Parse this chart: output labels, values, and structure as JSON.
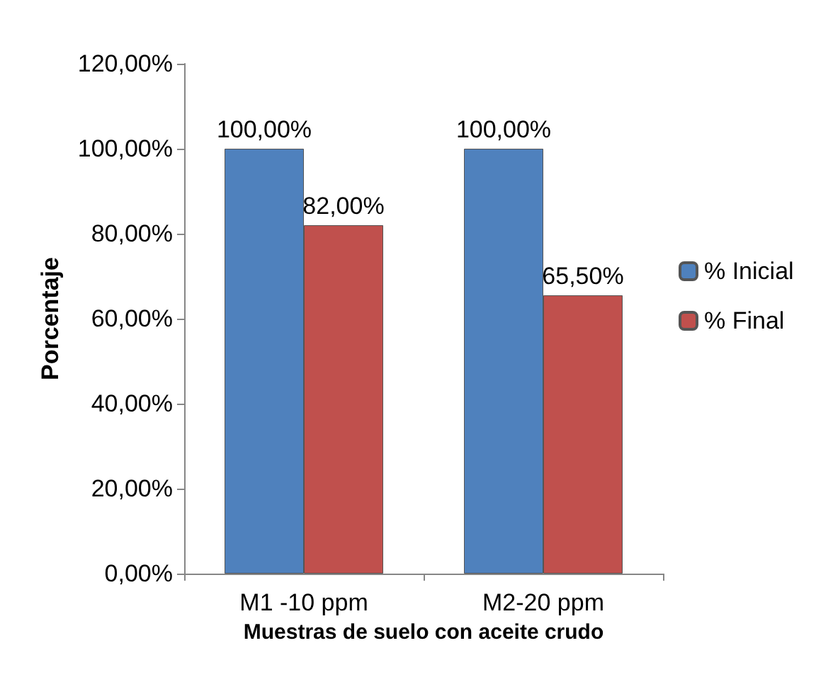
{
  "chart_data": {
    "type": "bar",
    "xlabel": "Muestras de suelo con aceite crudo",
    "ylabel": "Porcentaje",
    "categories": [
      "M1 -10 ppm",
      "M2-20 ppm"
    ],
    "series": [
      {
        "name": "% Inicial",
        "color": "#4f81bd",
        "values": [
          100,
          100
        ],
        "value_labels": [
          "100,00%",
          "100,00%"
        ]
      },
      {
        "name": "% Final",
        "color": "#c0504d",
        "values": [
          82,
          65.5
        ],
        "value_labels": [
          "82,00%",
          "65,50%"
        ]
      }
    ],
    "ylim": [
      0,
      120
    ],
    "yticks": [
      {
        "value": 0,
        "label": "0,00%"
      },
      {
        "value": 20,
        "label": "20,00%"
      },
      {
        "value": 40,
        "label": "40,00%"
      },
      {
        "value": 60,
        "label": "60,00%"
      },
      {
        "value": 80,
        "label": "80,00%"
      },
      {
        "value": 100,
        "label": "100,00%"
      },
      {
        "value": 120,
        "label": "120,00%"
      }
    ],
    "grid": false,
    "legend": "right"
  }
}
